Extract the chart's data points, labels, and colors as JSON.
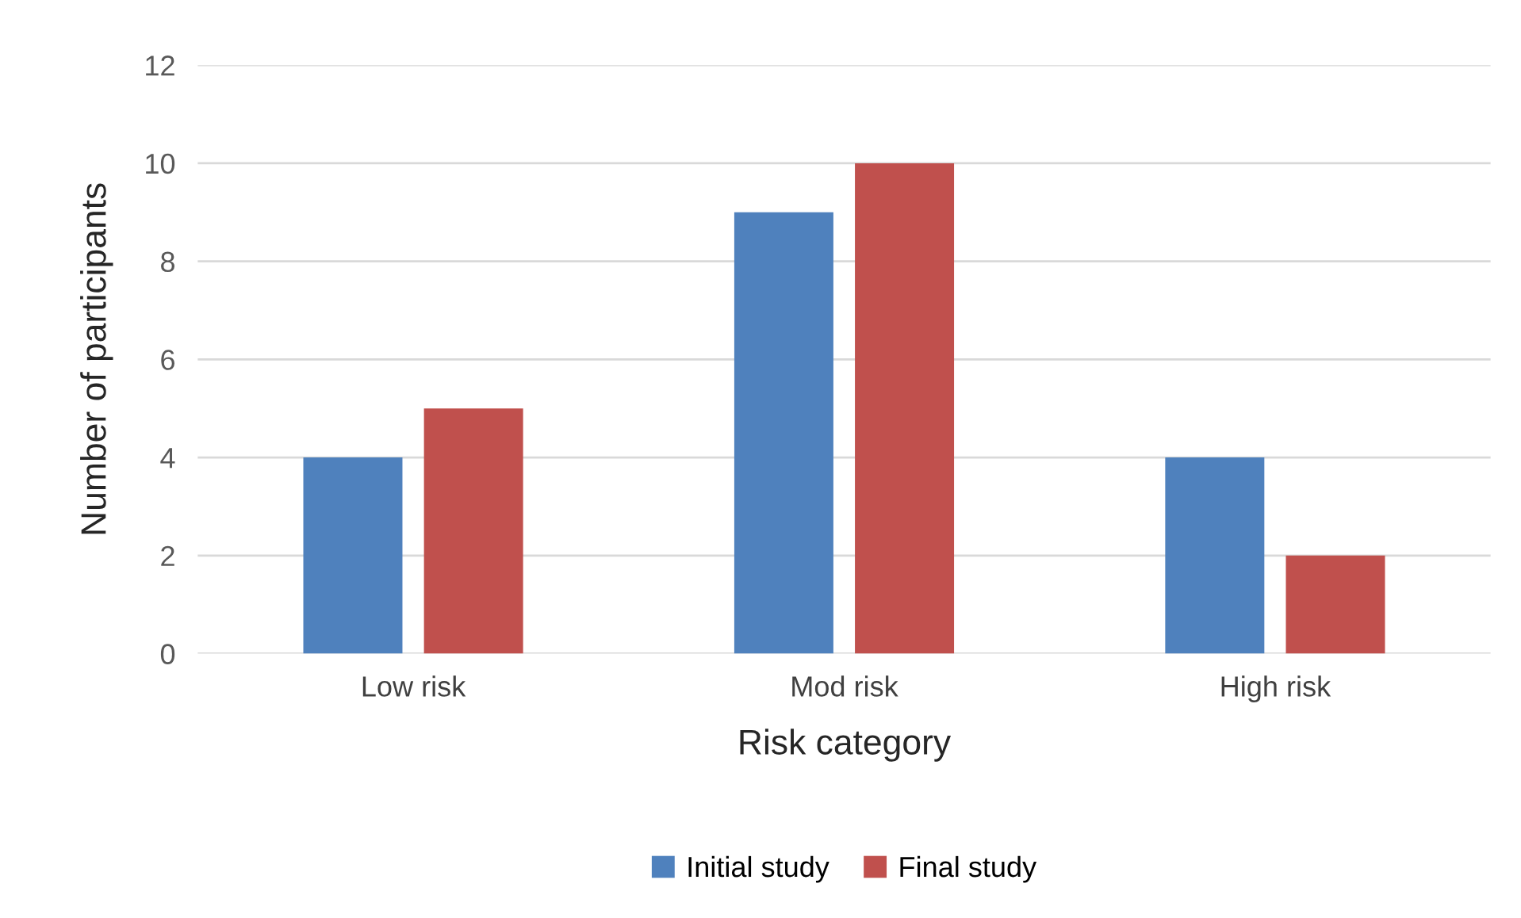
{
  "chart_data": {
    "type": "bar",
    "xlabel": "Risk category",
    "ylabel": "Number of participants",
    "categories": [
      "Low risk",
      "Mod risk",
      "High risk"
    ],
    "series": [
      {
        "name": "Initial study",
        "color": "#4f81bd",
        "values": [
          4,
          9,
          4
        ]
      },
      {
        "name": "Final study",
        "color": "#c0504d",
        "values": [
          5,
          10,
          2
        ]
      }
    ],
    "ylim": [
      0,
      12
    ],
    "yticks": [
      0,
      2,
      4,
      6,
      8,
      10,
      12
    ],
    "grid": "y",
    "legend": "bottom"
  }
}
